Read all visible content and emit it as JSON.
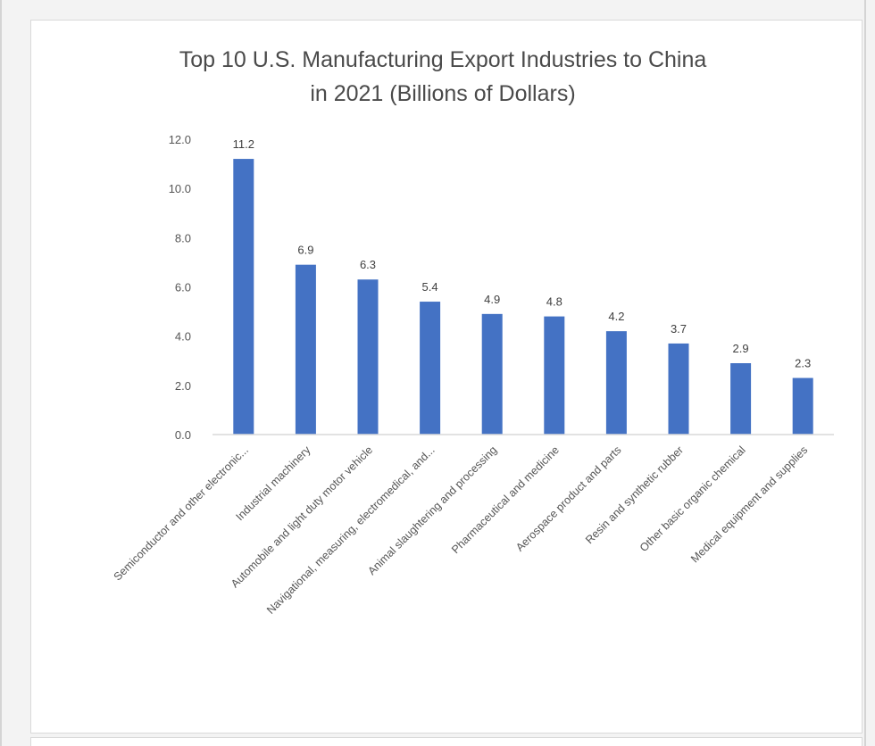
{
  "chart_data": {
    "type": "bar",
    "title_lines": [
      "Top 10 U.S. Manufacturing Export Industries to China",
      "in 2021 (Billions of Dollars)"
    ],
    "categories": [
      "Semiconductor and other electronic...",
      "Industrial machinery",
      "Automobile and light duty motor vehicle",
      "Navigational, measuring, electromedical, and...",
      "Animal slaughtering and processing",
      "Pharmaceutical and medicine",
      "Aerospace product and parts",
      "Resin and synthetic rubber",
      "Other basic organic chemical",
      "Medical equipment and supplies"
    ],
    "values": [
      11.2,
      6.9,
      6.3,
      5.4,
      4.9,
      4.8,
      4.2,
      3.7,
      2.9,
      2.3
    ],
    "data_labels": [
      "11.2",
      "6.9",
      "6.3",
      "5.4",
      "4.9",
      "4.8",
      "4.2",
      "3.7",
      "2.9",
      "2.3"
    ],
    "y_ticks": [
      0,
      2,
      4,
      6,
      8,
      10,
      12
    ],
    "y_tick_labels": [
      "0.0",
      "2.0",
      "4.0",
      "6.0",
      "8.0",
      "10.0",
      "12.0"
    ],
    "ylim": [
      0,
      12
    ],
    "grid": false,
    "legend": "none",
    "bar_color": "#4472c4",
    "axis_color": "#d9d9d9"
  }
}
